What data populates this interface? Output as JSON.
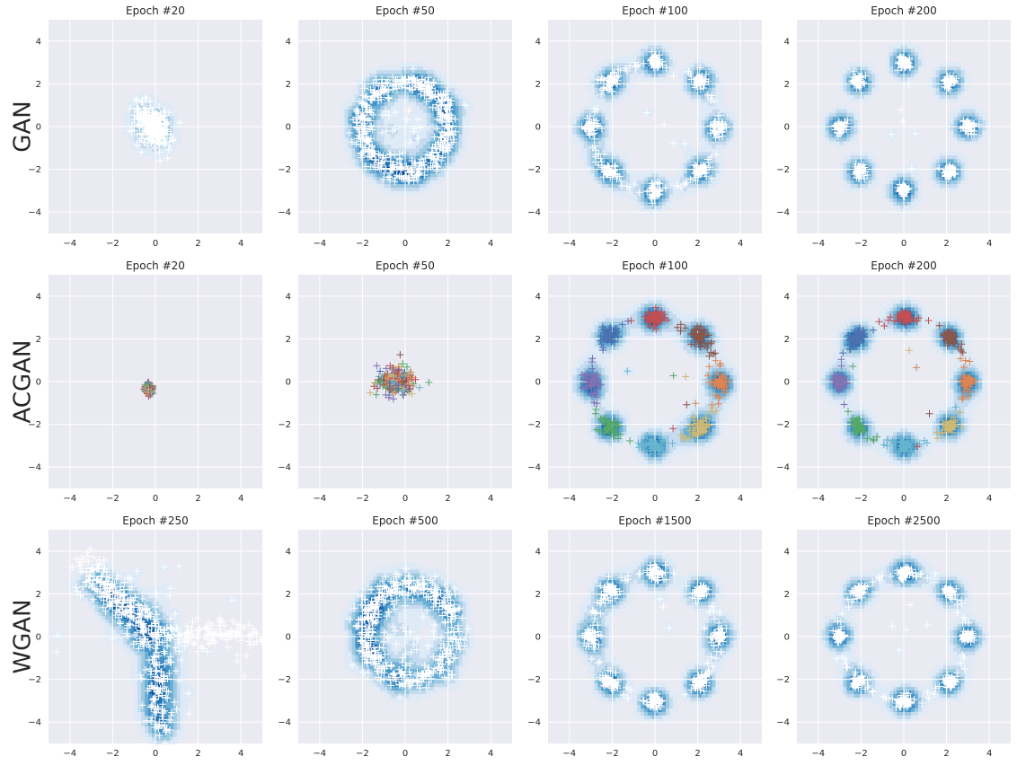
{
  "chart_data": {
    "type": "scatter",
    "layout": "3x4 grid of scatter plots with KDE density contours",
    "rows": [
      {
        "label": "GAN",
        "panels": [
          {
            "title": "Epoch #20",
            "pattern": "blob",
            "blob": {
              "cx": -0.1,
              "cy": 0.0,
              "sx": 0.35,
              "sy": 0.55,
              "rot": 0.6
            },
            "colored": false
          },
          {
            "title": "Epoch #50",
            "pattern": "ring",
            "ring": {
              "r": 2.0,
              "spread": 0.25,
              "cx": 0.0,
              "cy": 0.0
            },
            "colored": false
          },
          {
            "title": "Epoch #100",
            "pattern": "modes",
            "mode_radius": 3.0,
            "mode_spread": 0.18,
            "colored": false,
            "bridges": true
          },
          {
            "title": "Epoch #200",
            "pattern": "modes",
            "mode_radius": 3.0,
            "mode_spread": 0.15,
            "colored": false,
            "bridges": false
          }
        ]
      },
      {
        "label": "ACGAN",
        "panels": [
          {
            "title": "Epoch #20",
            "pattern": "tiny",
            "blob": {
              "cx": -0.3,
              "cy": -0.35,
              "sx": 0.08,
              "sy": 0.1,
              "rot": 0
            },
            "colored": true
          },
          {
            "title": "Epoch #50",
            "pattern": "tiny",
            "blob": {
              "cx": -0.4,
              "cy": 0.0,
              "sx": 0.45,
              "sy": 0.35,
              "rot": 0
            },
            "colored": true
          },
          {
            "title": "Epoch #100",
            "pattern": "modes",
            "mode_radius": 3.0,
            "mode_spread": 0.2,
            "colored": true,
            "bridges": true
          },
          {
            "title": "Epoch #200",
            "pattern": "modes",
            "mode_radius": 3.0,
            "mode_spread": 0.15,
            "colored": true,
            "bridges": true
          }
        ]
      },
      {
        "label": "WGAN",
        "panels": [
          {
            "title": "Epoch #250",
            "pattern": "arms",
            "colored": false
          },
          {
            "title": "Epoch #500",
            "pattern": "ring",
            "ring": {
              "r": 2.1,
              "spread": 0.3,
              "cx": 0.2,
              "cy": 0.2
            },
            "colored": false
          },
          {
            "title": "Epoch #1500",
            "pattern": "modes",
            "mode_radius": 3.0,
            "mode_spread": 0.18,
            "colored": false,
            "bridges": true
          },
          {
            "title": "Epoch #2500",
            "pattern": "modes",
            "mode_radius": 3.0,
            "mode_spread": 0.15,
            "colored": false,
            "bridges": true
          }
        ]
      }
    ],
    "xlim": [
      -5,
      5
    ],
    "ylim": [
      -5,
      5
    ],
    "xticks": [
      -4,
      -2,
      0,
      2,
      4
    ],
    "yticks": [
      -4,
      -2,
      0,
      2,
      4
    ],
    "xtick_labels": [
      "−4",
      "−2",
      "0",
      "2",
      "4"
    ],
    "ytick_labels": [
      "−4",
      "−2",
      "0",
      "2",
      "4"
    ],
    "true_modes": 8,
    "mode_colors": [
      "#c44e52",
      "#8c564b",
      "#dd8452",
      "#ccb974",
      "#64b5cd",
      "#55a868",
      "#8172b3",
      "#4c72b0"
    ],
    "marker": "+",
    "marker_color_uncolored": "#ffffff",
    "contour_colors": [
      "#deebf7",
      "#c6dbef",
      "#9ecae1",
      "#6baed6",
      "#4292c6",
      "#2171b5",
      "#08519c"
    ],
    "grid": true,
    "background": "#eaeaf2"
  }
}
